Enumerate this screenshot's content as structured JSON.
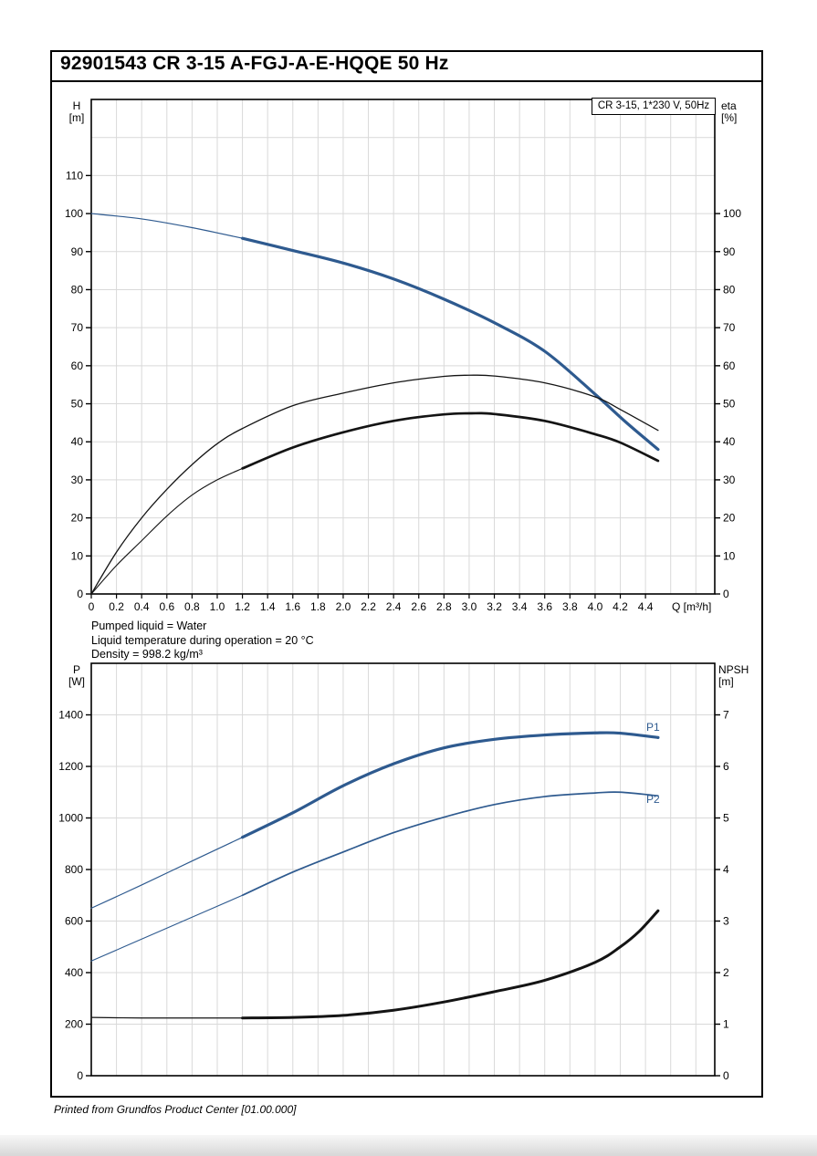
{
  "title": "92901543 CR 3-15 A-FGJ-A-E-HQQE 50 Hz",
  "legend_box": "CR 3-15, 1*230 V, 50Hz",
  "info_lines": [
    "Pumped liquid = Water",
    "Liquid temperature during operation = 20 °C",
    "Density = 998.2 kg/m³"
  ],
  "footer": "Printed from Grundfos Product Center [01.00.000]",
  "colors": {
    "curve_blue": "#2e5a8f",
    "curve_black": "#141414",
    "grid": "#d9d9d9",
    "axis": "#000000"
  },
  "chart_data": [
    {
      "type": "line",
      "name": "qh-efficiency-chart",
      "x_axis": {
        "label": "Q [m³/h]",
        "min": 0,
        "max": 4.95,
        "grid_step": 0.2,
        "tick_labels": [
          "0",
          "0.2",
          "0.4",
          "0.6",
          "0.8",
          "1.0",
          "1.2",
          "1.4",
          "1.6",
          "1.8",
          "2.0",
          "2.2",
          "2.4",
          "2.6",
          "2.8",
          "3.0",
          "3.2",
          "3.4",
          "3.6",
          "3.8",
          "4.0",
          "4.2",
          "4.4"
        ]
      },
      "y_left": {
        "symbol": "H",
        "unit": "[m]",
        "min": 0,
        "max": 130,
        "grid_step": 10,
        "tick_labels": [
          "0",
          "10",
          "20",
          "30",
          "40",
          "50",
          "60",
          "70",
          "80",
          "90",
          "100",
          "110"
        ]
      },
      "y_right": {
        "symbol": "eta",
        "unit": "[%]",
        "min": 0,
        "max": 130,
        "tick_labels": [
          "0",
          "10",
          "20",
          "30",
          "40",
          "50",
          "60",
          "70",
          "80",
          "90",
          "100"
        ]
      },
      "series": [
        {
          "name": "H",
          "color": "blue",
          "axis": "left",
          "split_q": 1.2,
          "width_thin": 1.2,
          "width_thick": 3.2,
          "points": [
            [
              0,
              100
            ],
            [
              0.4,
              98.6
            ],
            [
              0.8,
              96.3
            ],
            [
              1.2,
              93.5
            ],
            [
              1.6,
              90.3
            ],
            [
              2.0,
              87.0
            ],
            [
              2.4,
              82.8
            ],
            [
              2.8,
              77.5
            ],
            [
              3.2,
              71.3
            ],
            [
              3.6,
              63.8
            ],
            [
              4.0,
              52.5
            ],
            [
              4.25,
              45.0
            ],
            [
              4.5,
              38.0
            ]
          ]
        },
        {
          "name": "eta-thin",
          "color": "black",
          "axis": "left",
          "width": 1.3,
          "points": [
            [
              0,
              0
            ],
            [
              0.2,
              11
            ],
            [
              0.4,
              20
            ],
            [
              0.6,
              27.5
            ],
            [
              0.8,
              34
            ],
            [
              1.0,
              39.5
            ],
            [
              1.2,
              43.5
            ],
            [
              1.6,
              49.5
            ],
            [
              2.0,
              52.8
            ],
            [
              2.4,
              55.5
            ],
            [
              2.8,
              57.2
            ],
            [
              3.0,
              57.5
            ],
            [
              3.2,
              57.3
            ],
            [
              3.6,
              55.5
            ],
            [
              4.0,
              51.8
            ],
            [
              4.2,
              48.5
            ],
            [
              4.5,
              43.0
            ]
          ]
        },
        {
          "name": "eta-thick",
          "color": "black",
          "axis": "left",
          "split_q": 1.2,
          "width_thin": 1.1,
          "width_thick": 2.7,
          "points": [
            [
              0,
              0
            ],
            [
              0.2,
              7.5
            ],
            [
              0.4,
              14
            ],
            [
              0.6,
              20.5
            ],
            [
              0.8,
              26
            ],
            [
              1.0,
              30
            ],
            [
              1.2,
              33
            ],
            [
              1.6,
              38.5
            ],
            [
              2.0,
              42.5
            ],
            [
              2.4,
              45.5
            ],
            [
              2.8,
              47.2
            ],
            [
              3.05,
              47.5
            ],
            [
              3.2,
              47.3
            ],
            [
              3.6,
              45.5
            ],
            [
              4.0,
              42.0
            ],
            [
              4.2,
              39.8
            ],
            [
              4.5,
              35.0
            ]
          ]
        }
      ]
    },
    {
      "type": "line",
      "name": "power-npsh-chart",
      "x_axis": {
        "label": "",
        "min": 0,
        "max": 4.95,
        "grid_step": 0.2,
        "tick_labels": []
      },
      "y_left": {
        "symbol": "P",
        "unit": "[W]",
        "min": 0,
        "max": 1600,
        "grid_step": 200,
        "tick_labels": [
          "0",
          "200",
          "400",
          "600",
          "800",
          "1000",
          "1200",
          "1400"
        ]
      },
      "y_right": {
        "symbol": "NPSH",
        "unit": "[m]",
        "min": 0,
        "max": 8,
        "tick_labels": [
          "0",
          "1",
          "2",
          "3",
          "4",
          "5",
          "6",
          "7"
        ]
      },
      "series": [
        {
          "name": "P1",
          "color": "blue",
          "axis": "left",
          "split_q": 1.2,
          "width_thin": 1.2,
          "width_thick": 3.2,
          "points": [
            [
              0,
              650
            ],
            [
              0.4,
              740
            ],
            [
              0.8,
              833
            ],
            [
              1.2,
              925
            ],
            [
              1.6,
              1020
            ],
            [
              2.0,
              1125
            ],
            [
              2.4,
              1210
            ],
            [
              2.8,
              1272
            ],
            [
              3.2,
              1305
            ],
            [
              3.6,
              1322
            ],
            [
              4.0,
              1330
            ],
            [
              4.2,
              1329
            ],
            [
              4.5,
              1312
            ]
          ]
        },
        {
          "name": "P2",
          "color": "blue",
          "axis": "left",
          "split_q": 1.2,
          "width_thin": 1.1,
          "width_thick": 1.7,
          "points": [
            [
              0,
              445
            ],
            [
              0.4,
              530
            ],
            [
              0.8,
              615
            ],
            [
              1.2,
              700
            ],
            [
              1.6,
              790
            ],
            [
              2.0,
              868
            ],
            [
              2.4,
              943
            ],
            [
              2.8,
              1003
            ],
            [
              3.2,
              1052
            ],
            [
              3.6,
              1083
            ],
            [
              4.0,
              1097
            ],
            [
              4.2,
              1100
            ],
            [
              4.5,
              1086
            ]
          ]
        },
        {
          "name": "NPSH",
          "color": "black",
          "axis": "right",
          "split_q": 1.2,
          "width_thin": 1.2,
          "width_thick": 3,
          "points": [
            [
              0,
              1.13
            ],
            [
              0.4,
              1.12
            ],
            [
              0.8,
              1.12
            ],
            [
              1.2,
              1.12
            ],
            [
              1.6,
              1.13
            ],
            [
              2.0,
              1.17
            ],
            [
              2.4,
              1.27
            ],
            [
              2.8,
              1.43
            ],
            [
              3.2,
              1.63
            ],
            [
              3.6,
              1.85
            ],
            [
              4.0,
              2.2
            ],
            [
              4.2,
              2.5
            ],
            [
              4.35,
              2.8
            ],
            [
              4.5,
              3.2
            ]
          ]
        }
      ],
      "annotations": [
        {
          "text": "P1",
          "q": 4.46,
          "v": 1352,
          "axis": "left"
        },
        {
          "text": "P2",
          "q": 4.46,
          "v": 1072,
          "axis": "left"
        }
      ]
    }
  ]
}
